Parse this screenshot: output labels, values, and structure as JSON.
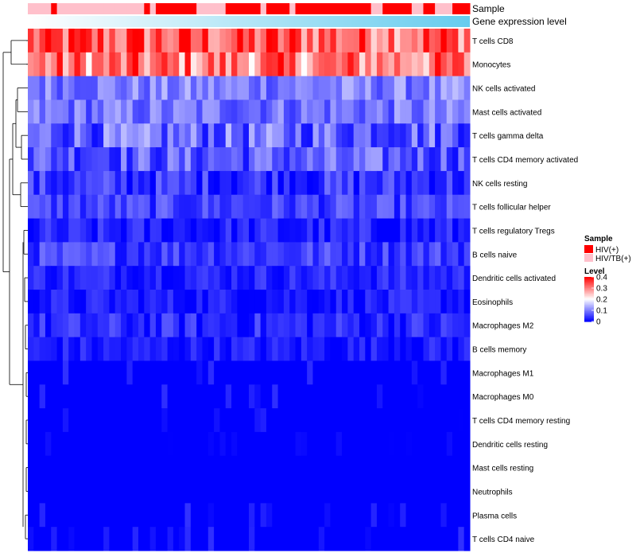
{
  "chart_data": {
    "type": "heatmap",
    "title": "",
    "annotation_rows": [
      {
        "label": "Sample",
        "kind": "categorical"
      },
      {
        "label": "Gene expression level",
        "kind": "gradient"
      }
    ],
    "sample_groups": [
      "HIV/TB(+)",
      "HIV/TB(+)",
      "HIV/TB(+)",
      "HIV/TB(+)",
      "HIV(+)",
      "HIV/TB(+)",
      "HIV/TB(+)",
      "HIV/TB(+)",
      "HIV/TB(+)",
      "HIV/TB(+)",
      "HIV/TB(+)",
      "HIV/TB(+)",
      "HIV/TB(+)",
      "HIV/TB(+)",
      "HIV/TB(+)",
      "HIV/TB(+)",
      "HIV/TB(+)",
      "HIV/TB(+)",
      "HIV/TB(+)",
      "HIV/TB(+)",
      "HIV(+)",
      "HIV/TB(+)",
      "HIV(+)",
      "HIV(+)",
      "HIV(+)",
      "HIV(+)",
      "HIV(+)",
      "HIV(+)",
      "HIV(+)",
      "HIV/TB(+)",
      "HIV/TB(+)",
      "HIV/TB(+)",
      "HIV/TB(+)",
      "HIV/TB(+)",
      "HIV(+)",
      "HIV(+)",
      "HIV(+)",
      "HIV(+)",
      "HIV(+)",
      "HIV(+)",
      "HIV/TB(+)",
      "HIV(+)",
      "HIV(+)",
      "HIV(+)",
      "HIV(+)",
      "HIV/TB(+)",
      "HIV(+)",
      "HIV(+)",
      "HIV(+)",
      "HIV(+)",
      "HIV(+)",
      "HIV(+)",
      "HIV(+)",
      "HIV(+)",
      "HIV(+)",
      "HIV(+)",
      "HIV(+)",
      "HIV(+)",
      "HIV(+)",
      "HIV/TB(+)",
      "HIV/TB(+)",
      "HIV(+)",
      "HIV(+)",
      "HIV(+)",
      "HIV(+)",
      "HIV(+)",
      "HIV/TB(+)",
      "HIV/TB(+)",
      "HIV(+)",
      "HIV(+)",
      "HIV/TB(+)",
      "HIV/TB(+)",
      "HIV/TB(+)",
      "HIV(+)",
      "HIV(+)",
      "HIV(+)"
    ],
    "rows": [
      "T cells CD8",
      "Monocytes",
      "NK cells activated",
      "Mast cells activated",
      "T cells gamma delta",
      "T cells CD4 memory activated",
      "NK cells resting",
      "T cells follicular helper",
      "T cells regulatory  Tregs",
      "B cells naive",
      "Dendritic cells activated",
      "Eosinophils",
      "Macrophages M2",
      "B cells memory",
      "Macrophages M1",
      "Macrophages M0",
      "T cells CD4 memory resting",
      "Dendritic cells resting",
      "Mast cells resting",
      "Neutrophils",
      "Plasma cells",
      "T cells CD4 naive"
    ],
    "row_means": [
      0.33,
      0.3,
      0.1,
      0.09,
      0.08,
      0.07,
      0.04,
      0.05,
      0.02,
      0.05,
      0.03,
      0.02,
      0.03,
      0.02,
      0.01,
      0.01,
      0.005,
      0.002,
      0.0,
      0.0,
      0.01,
      0.01
    ],
    "row_spread": [
      0.1,
      0.1,
      0.05,
      0.05,
      0.07,
      0.06,
      0.05,
      0.04,
      0.04,
      0.04,
      0.03,
      0.03,
      0.04,
      0.03,
      0.03,
      0.03,
      0.02,
      0.01,
      0.0,
      0.0,
      0.03,
      0.03
    ],
    "n_samples": 76,
    "color_scale": {
      "min": 0,
      "max": 0.4,
      "low": "#0000ff",
      "mid": "#ffffff",
      "high": "#ff0000",
      "midpoint": 0.2
    },
    "legends": {
      "sample": {
        "title": "Sample",
        "entries": [
          {
            "label": "HIV(+)",
            "color": "#ff0000"
          },
          {
            "label": "HIV/TB(+)",
            "color": "#ffc0cb"
          }
        ]
      },
      "level": {
        "title": "Level",
        "ticks": [
          0.4,
          0.3,
          0.2,
          0.1,
          0
        ],
        "tick_labels": [
          "0.4",
          "0.3",
          "0.2",
          "0.1",
          "0"
        ]
      }
    },
    "gradient_colors": [
      "#ffffff",
      "#66ccee"
    ]
  }
}
